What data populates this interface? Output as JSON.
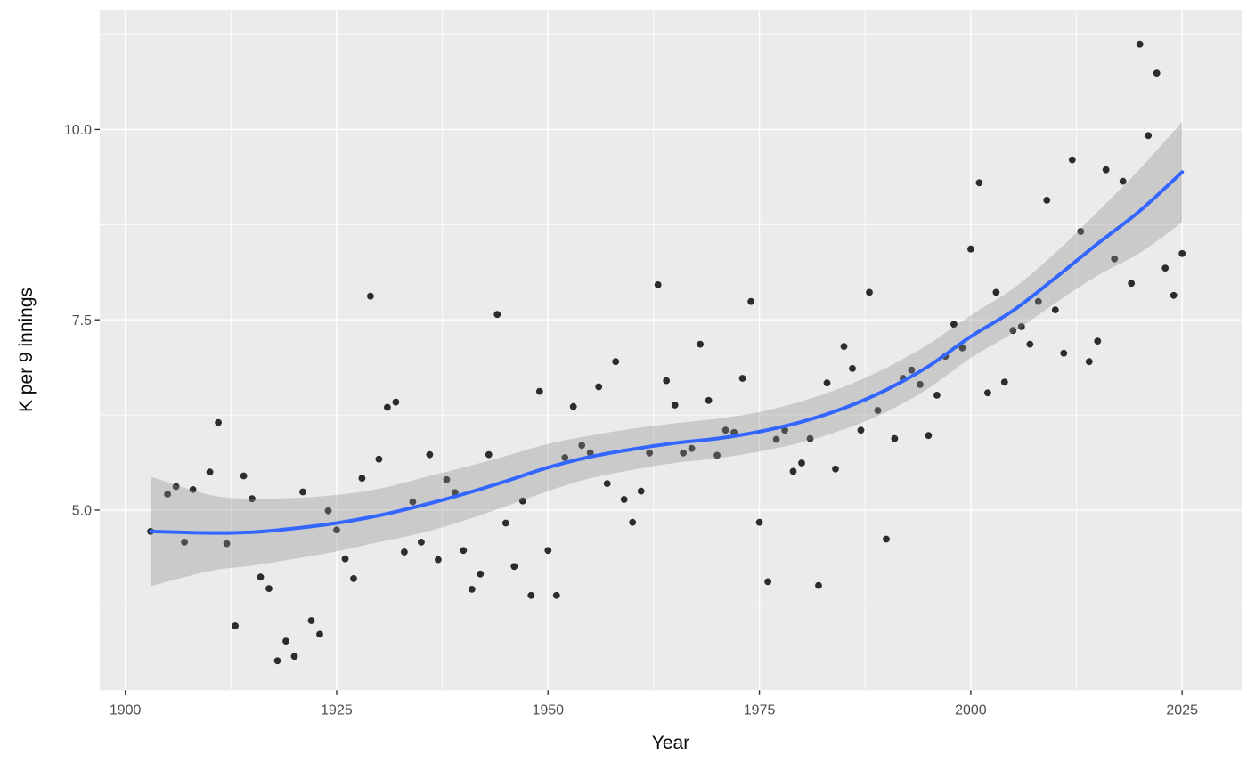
{
  "figure": {
    "background": "#FFFFFF",
    "panel_bg": "#EBEBEB",
    "grid_color": "#FFFFFF",
    "tick_mark_color": "#333333",
    "tick_label_color": "#4D4D4D",
    "axis_title_color": "#0A0A0A",
    "point_color": "#0A0A0A",
    "point_opacity": 0.85,
    "point_radius": 3.9,
    "line_color": "#3366FF",
    "line_width": 4,
    "ribbon_color": "#8C8C8C",
    "ribbon_opacity": 0.35
  },
  "chart_data": {
    "type": "scatter",
    "title": "",
    "xlabel": "Year",
    "ylabel": "K per 9 innings",
    "legend": "none",
    "grid": "major+minor",
    "xlim": [
      1896.98,
      2032.04
    ],
    "ylim": [
      2.634,
      11.572
    ],
    "x_ticks": [
      1900,
      1925,
      1950,
      1975,
      2000,
      2025
    ],
    "x_tick_labels": [
      "1900",
      "1925",
      "1950",
      "1975",
      "2000",
      "2025"
    ],
    "x_minor_ticks": [
      1912.5,
      1937.5,
      1962.5,
      1987.5,
      2012.5
    ],
    "y_ticks": [
      5.0,
      7.5,
      10.0
    ],
    "y_tick_labels": [
      "5.0",
      "7.5",
      "10.0"
    ],
    "y_minor_ticks": [
      3.75,
      6.25,
      8.75,
      11.25
    ],
    "points": [
      [
        1903,
        4.72
      ],
      [
        1905,
        5.21
      ],
      [
        1906,
        5.31
      ],
      [
        1907,
        4.58
      ],
      [
        1908,
        5.27
      ],
      [
        1910,
        5.5
      ],
      [
        1911,
        6.15
      ],
      [
        1912,
        4.56
      ],
      [
        1913,
        3.48
      ],
      [
        1914,
        5.45
      ],
      [
        1915,
        5.15
      ],
      [
        1916,
        4.12
      ],
      [
        1917,
        3.97
      ],
      [
        1918,
        3.02
      ],
      [
        1919,
        3.28
      ],
      [
        1920,
        3.08
      ],
      [
        1921,
        5.24
      ],
      [
        1922,
        3.55
      ],
      [
        1923,
        3.37
      ],
      [
        1924,
        4.99
      ],
      [
        1925,
        4.74
      ],
      [
        1926,
        4.36
      ],
      [
        1927,
        4.1
      ],
      [
        1928,
        5.42
      ],
      [
        1929,
        7.81
      ],
      [
        1930,
        5.67
      ],
      [
        1931,
        6.35
      ],
      [
        1932,
        6.42
      ],
      [
        1933,
        4.45
      ],
      [
        1934,
        5.11
      ],
      [
        1935,
        4.58
      ],
      [
        1936,
        5.73
      ],
      [
        1937,
        4.35
      ],
      [
        1938,
        5.4
      ],
      [
        1939,
        5.23
      ],
      [
        1940,
        4.47
      ],
      [
        1941,
        3.96
      ],
      [
        1942,
        4.16
      ],
      [
        1943,
        5.73
      ],
      [
        1944,
        7.57
      ],
      [
        1945,
        4.83
      ],
      [
        1946,
        4.26
      ],
      [
        1947,
        5.12
      ],
      [
        1948,
        3.88
      ],
      [
        1949,
        6.56
      ],
      [
        1950,
        4.47
      ],
      [
        1951,
        3.88
      ],
      [
        1952,
        5.69
      ],
      [
        1953,
        6.36
      ],
      [
        1954,
        5.85
      ],
      [
        1955,
        5.75
      ],
      [
        1956,
        6.62
      ],
      [
        1957,
        5.35
      ],
      [
        1958,
        6.95
      ],
      [
        1959,
        5.14
      ],
      [
        1960,
        4.84
      ],
      [
        1961,
        5.25
      ],
      [
        1962,
        5.75
      ],
      [
        1963,
        7.96
      ],
      [
        1964,
        6.7
      ],
      [
        1965,
        6.38
      ],
      [
        1966,
        5.75
      ],
      [
        1967,
        5.81
      ],
      [
        1968,
        7.18
      ],
      [
        1969,
        6.44
      ],
      [
        1970,
        5.72
      ],
      [
        1971,
        6.05
      ],
      [
        1972,
        6.02
      ],
      [
        1973,
        6.73
      ],
      [
        1974,
        7.74
      ],
      [
        1975,
        4.84
      ],
      [
        1976,
        4.06
      ],
      [
        1977,
        5.93
      ],
      [
        1978,
        6.05
      ],
      [
        1979,
        5.51
      ],
      [
        1980,
        5.62
      ],
      [
        1981,
        5.94
      ],
      [
        1982,
        4.01
      ],
      [
        1983,
        6.67
      ],
      [
        1984,
        5.54
      ],
      [
        1985,
        7.15
      ],
      [
        1986,
        6.86
      ],
      [
        1987,
        6.05
      ],
      [
        1988,
        7.86
      ],
      [
        1989,
        6.31
      ],
      [
        1990,
        4.62
      ],
      [
        1991,
        5.94
      ],
      [
        1992,
        6.73
      ],
      [
        1993,
        6.84
      ],
      [
        1994,
        6.65
      ],
      [
        1995,
        5.98
      ],
      [
        1996,
        6.51
      ],
      [
        1997,
        7.02
      ],
      [
        1998,
        7.44
      ],
      [
        1999,
        7.13
      ],
      [
        2000,
        8.43
      ],
      [
        2001,
        9.3
      ],
      [
        2002,
        6.54
      ],
      [
        2003,
        7.86
      ],
      [
        2004,
        6.68
      ],
      [
        2005,
        7.36
      ],
      [
        2006,
        7.41
      ],
      [
        2007,
        7.18
      ],
      [
        2008,
        7.74
      ],
      [
        2009,
        9.07
      ],
      [
        2010,
        7.63
      ],
      [
        2011,
        7.06
      ],
      [
        2012,
        9.6
      ],
      [
        2013,
        8.66
      ],
      [
        2014,
        6.95
      ],
      [
        2015,
        7.22
      ],
      [
        2016,
        9.47
      ],
      [
        2017,
        8.3
      ],
      [
        2018,
        9.32
      ],
      [
        2019,
        7.98
      ],
      [
        2020,
        11.12
      ],
      [
        2021,
        9.92
      ],
      [
        2022,
        10.74
      ],
      [
        2023,
        8.18
      ],
      [
        2024,
        7.82
      ],
      [
        2025,
        8.37
      ]
    ],
    "smooth": {
      "method": "loess",
      "line": [
        [
          1903,
          4.72
        ],
        [
          1910,
          4.7
        ],
        [
          1915,
          4.71
        ],
        [
          1920,
          4.76
        ],
        [
          1925,
          4.83
        ],
        [
          1930,
          4.93
        ],
        [
          1935,
          5.06
        ],
        [
          1940,
          5.21
        ],
        [
          1945,
          5.38
        ],
        [
          1950,
          5.56
        ],
        [
          1955,
          5.7
        ],
        [
          1960,
          5.8
        ],
        [
          1965,
          5.88
        ],
        [
          1970,
          5.94
        ],
        [
          1975,
          6.03
        ],
        [
          1980,
          6.16
        ],
        [
          1985,
          6.34
        ],
        [
          1990,
          6.58
        ],
        [
          1995,
          6.89
        ],
        [
          2000,
          7.28
        ],
        [
          2005,
          7.62
        ],
        [
          2010,
          8.05
        ],
        [
          2015,
          8.5
        ],
        [
          2020,
          8.93
        ],
        [
          2025,
          9.44
        ]
      ],
      "ribbon_upper": [
        [
          1903,
          5.44
        ],
        [
          1910,
          5.2
        ],
        [
          1915,
          5.15
        ],
        [
          1920,
          5.16
        ],
        [
          1925,
          5.2
        ],
        [
          1930,
          5.28
        ],
        [
          1935,
          5.42
        ],
        [
          1940,
          5.56
        ],
        [
          1945,
          5.71
        ],
        [
          1950,
          5.87
        ],
        [
          1955,
          5.98
        ],
        [
          1960,
          6.07
        ],
        [
          1965,
          6.14
        ],
        [
          1970,
          6.2
        ],
        [
          1975,
          6.29
        ],
        [
          1980,
          6.43
        ],
        [
          1985,
          6.62
        ],
        [
          1990,
          6.87
        ],
        [
          1995,
          7.18
        ],
        [
          2000,
          7.56
        ],
        [
          2005,
          7.91
        ],
        [
          2010,
          8.38
        ],
        [
          2015,
          8.92
        ],
        [
          2020,
          9.48
        ],
        [
          2025,
          10.1
        ]
      ],
      "ribbon_lower": [
        [
          1903,
          4.0
        ],
        [
          1910,
          4.2
        ],
        [
          1915,
          4.27
        ],
        [
          1920,
          4.36
        ],
        [
          1925,
          4.46
        ],
        [
          1930,
          4.58
        ],
        [
          1935,
          4.7
        ],
        [
          1940,
          4.86
        ],
        [
          1945,
          5.05
        ],
        [
          1950,
          5.25
        ],
        [
          1955,
          5.42
        ],
        [
          1960,
          5.53
        ],
        [
          1965,
          5.62
        ],
        [
          1970,
          5.68
        ],
        [
          1975,
          5.77
        ],
        [
          1980,
          5.89
        ],
        [
          1985,
          6.06
        ],
        [
          1990,
          6.29
        ],
        [
          1995,
          6.6
        ],
        [
          2000,
          7.0
        ],
        [
          2005,
          7.33
        ],
        [
          2010,
          7.72
        ],
        [
          2015,
          8.08
        ],
        [
          2020,
          8.38
        ],
        [
          2025,
          8.78
        ]
      ]
    }
  }
}
